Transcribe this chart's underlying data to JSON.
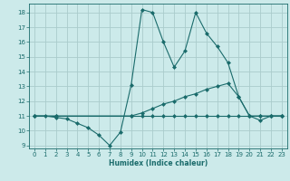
{
  "xlabel": "Humidex (Indice chaleur)",
  "bg_color": "#cceaea",
  "grid_color": "#aacccc",
  "line_color": "#1a6b6b",
  "xlim": [
    -0.5,
    23.5
  ],
  "ylim": [
    8.8,
    18.6
  ],
  "yticks": [
    9,
    10,
    11,
    12,
    13,
    14,
    15,
    16,
    17,
    18
  ],
  "xticks": [
    0,
    1,
    2,
    3,
    4,
    5,
    6,
    7,
    8,
    9,
    10,
    11,
    12,
    13,
    14,
    15,
    16,
    17,
    18,
    19,
    20,
    21,
    22,
    23
  ],
  "line1_x": [
    0,
    1,
    2,
    3,
    4,
    5,
    6,
    7,
    8,
    9,
    10,
    11,
    12,
    13,
    14,
    15,
    16,
    17,
    18,
    19,
    20,
    21,
    22,
    23
  ],
  "line1_y": [
    11,
    11,
    10.9,
    10.8,
    10.5,
    10.2,
    9.7,
    9.0,
    9.9,
    13.1,
    18.2,
    18.0,
    16.0,
    14.3,
    15.4,
    18.0,
    16.6,
    15.7,
    14.6,
    12.3,
    11.0,
    10.7,
    11.0,
    11.0
  ],
  "line2_x": [
    0,
    2,
    9,
    10,
    11,
    12,
    13,
    14,
    15,
    16,
    17,
    18,
    19,
    20,
    21,
    22,
    23
  ],
  "line2_y": [
    11,
    11,
    11,
    11.2,
    11.5,
    11.8,
    12.0,
    12.3,
    12.5,
    12.8,
    13.0,
    13.2,
    12.3,
    11.0,
    11.0,
    11.0,
    11.0
  ],
  "line3_x": [
    0,
    2,
    9,
    10,
    11,
    12,
    13,
    14,
    15,
    16,
    17,
    18,
    19,
    20,
    21,
    22,
    23
  ],
  "line3_y": [
    11,
    11,
    11,
    11,
    11,
    11,
    11,
    11,
    11,
    11,
    11,
    11,
    11,
    11,
    11,
    11,
    11
  ]
}
